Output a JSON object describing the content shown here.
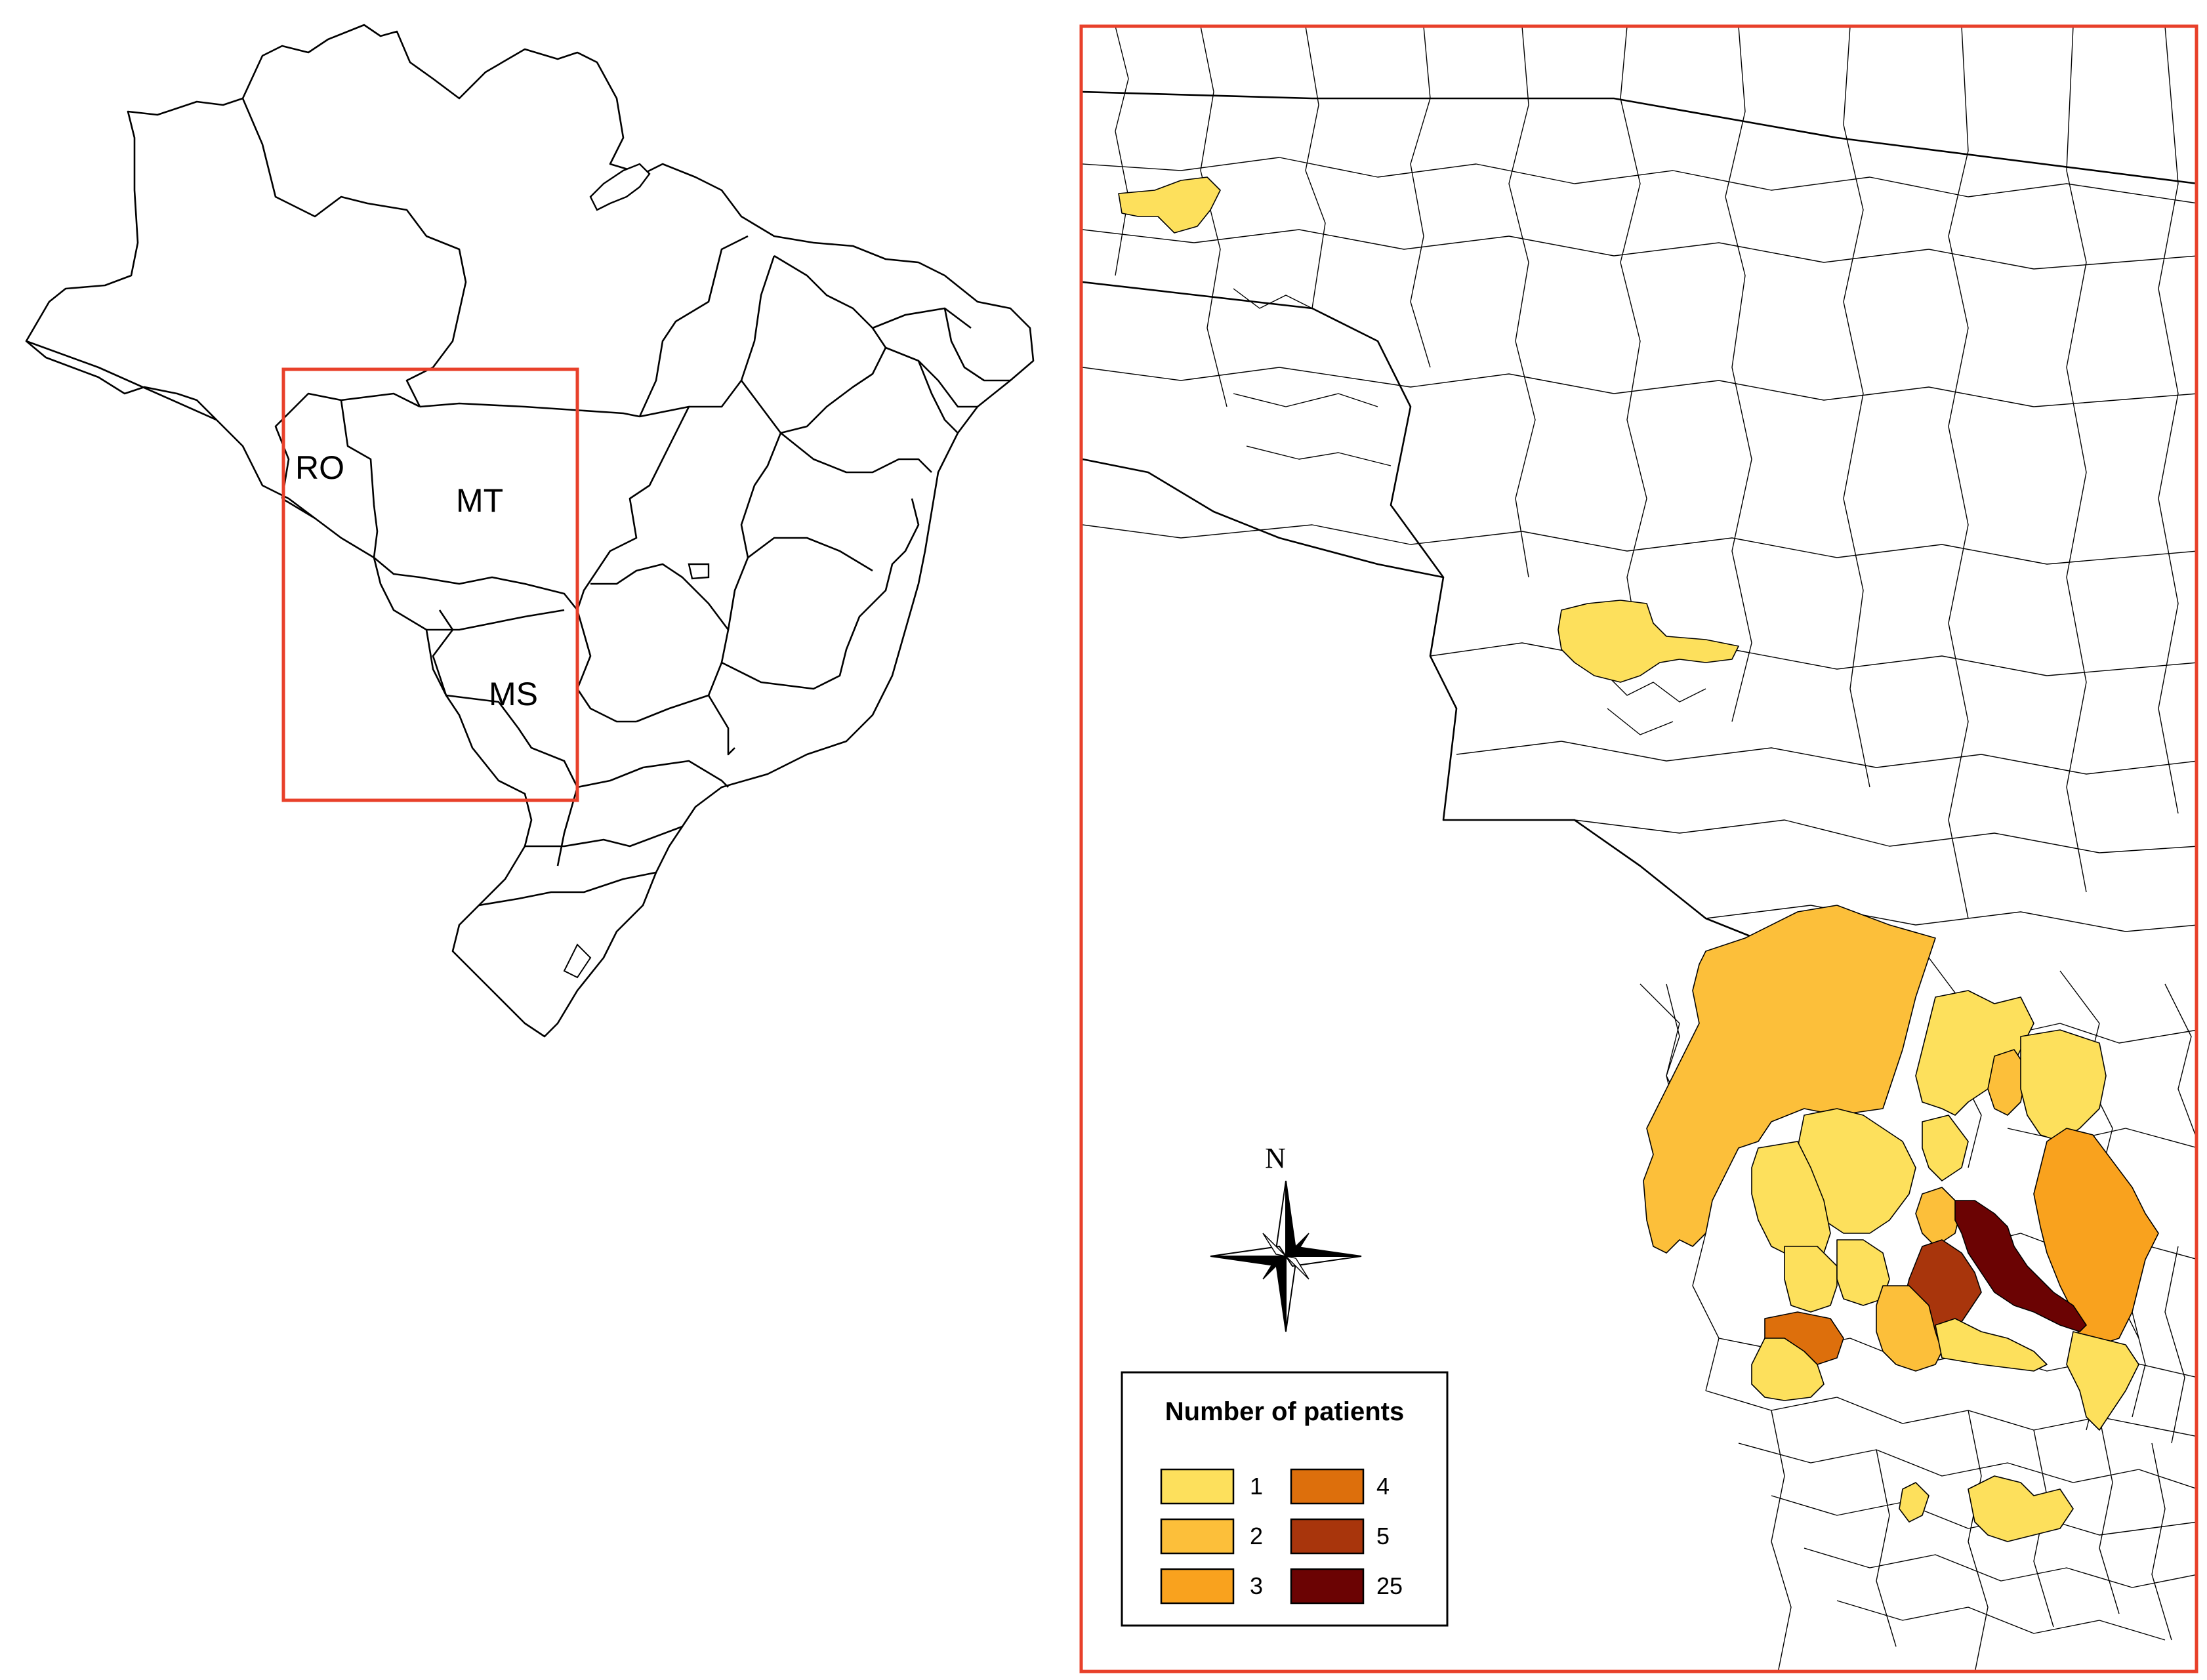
{
  "overview_map": {
    "state_labels": {
      "ro": "RO",
      "mt": "MT",
      "ms": "MS"
    },
    "frame_color": "#e8402a"
  },
  "detail_map": {
    "frame_color": "#e8402a",
    "north_label": "N",
    "legend": {
      "title": "Number of patients",
      "items": [
        {
          "label": "1",
          "color": "#fde05c"
        },
        {
          "label": "2",
          "color": "#fcbf3a"
        },
        {
          "label": "3",
          "color": "#f9a21e"
        },
        {
          "label": "4",
          "color": "#dd6f0c"
        },
        {
          "label": "5",
          "color": "#a8350c"
        },
        {
          "label": "25",
          "color": "#6b0303"
        }
      ]
    }
  }
}
